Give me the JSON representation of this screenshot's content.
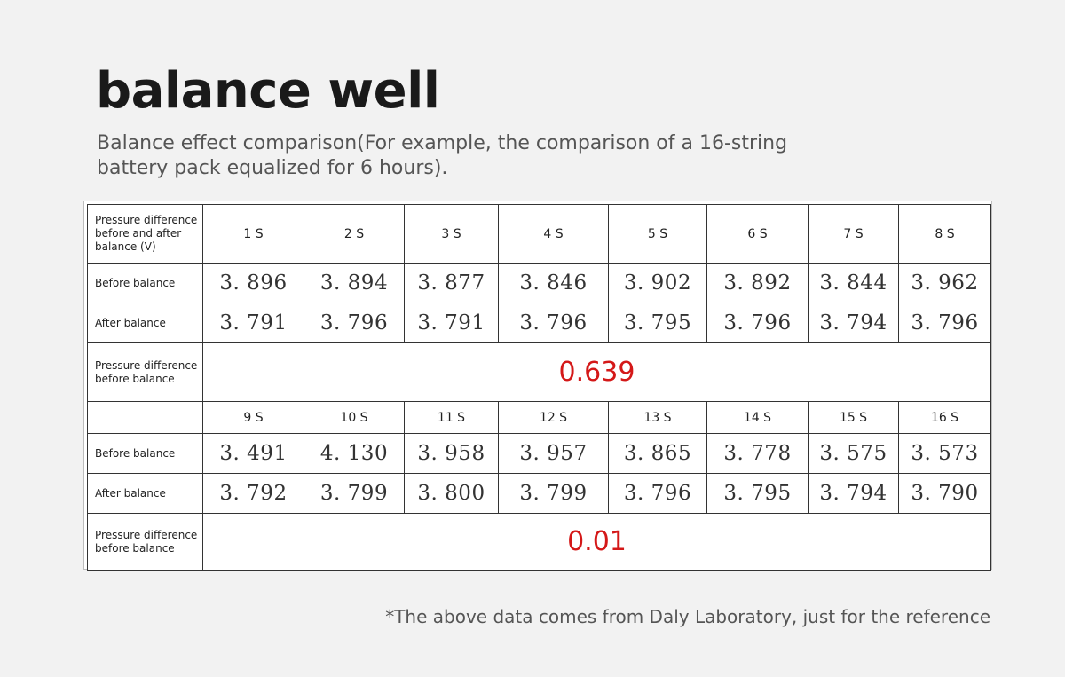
{
  "title": "balance well",
  "subtitle": "Balance effect comparison(For example, the comparison of a 16-string battery pack equalized for 6 hours).",
  "table": {
    "header_row_label": "Pressure difference before and after balance (V)",
    "cells_1_8": [
      "1 S",
      "2 S",
      "3 S",
      "4 S",
      "5 S",
      "6 S",
      "7 S",
      "8 S"
    ],
    "before_label": "Before balance",
    "after_label": "After balance",
    "diff_label": "Pressure difference before balance",
    "before_1_8": [
      "3. 896",
      "3. 894",
      "3. 877",
      "3. 846",
      "3. 902",
      "3. 892",
      "3. 844",
      "3. 962"
    ],
    "after_1_8": [
      "3. 791",
      "3. 796",
      "3. 791",
      "3. 796",
      "3. 795",
      "3. 796",
      "3. 794",
      "3. 796"
    ],
    "diff_1_8": "0.639",
    "cells_9_16": [
      "9 S",
      "10 S",
      "11 S",
      "12 S",
      "13 S",
      "14 S",
      "15 S",
      "16 S"
    ],
    "before_9_16": [
      "3. 491",
      "4. 130",
      "3. 958",
      "3. 957",
      "3. 865",
      "3. 778",
      "3. 575",
      "3. 573"
    ],
    "after_9_16": [
      "3. 792",
      "3. 799",
      "3. 800",
      "3. 799",
      "3. 796",
      "3. 795",
      "3. 794",
      "3. 790"
    ],
    "diff_9_16": "0.01"
  },
  "footnote": "*The above data comes from Daly Laboratory,  just for the reference",
  "colors": {
    "highlight": "#d41818",
    "text": "#222222",
    "background": "#f2f2f2"
  }
}
